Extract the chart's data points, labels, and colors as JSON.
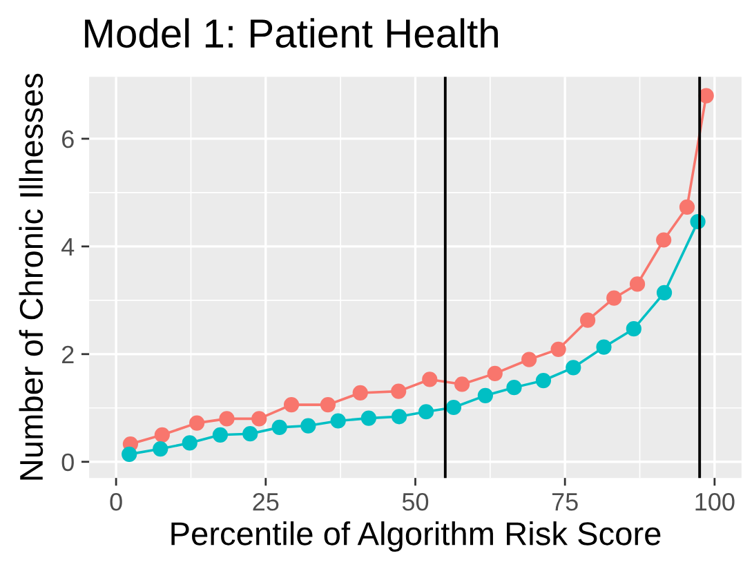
{
  "chart_data": {
    "type": "line",
    "title": "Model 1: Patient Health",
    "xlabel": "Percentile of Algorithm Risk Score",
    "ylabel": "Number of Chronic Illnesses",
    "series": [
      {
        "color": "#f8766d",
        "x": [
          2.4,
          7.7,
          13.5,
          18.5,
          23.9,
          29.3,
          35.4,
          40.8,
          47.2,
          52.4,
          57.8,
          63.3,
          69,
          73.9,
          78.8,
          83.2,
          87.1,
          91.5,
          95.4,
          98.6
        ],
        "values": [
          0.33,
          0.5,
          0.72,
          0.8,
          0.8,
          1.06,
          1.06,
          1.28,
          1.31,
          1.53,
          1.44,
          1.64,
          1.9,
          2.09,
          2.63,
          3.04,
          3.3,
          4.12,
          4.73,
          6.8
        ]
      },
      {
        "color": "#00bfc4",
        "x": [
          2.2,
          7.4,
          12.3,
          17.4,
          22.4,
          27.3,
          32.1,
          37.1,
          42.2,
          47.3,
          51.8,
          56.4,
          61.7,
          66.5,
          71.4,
          76.4,
          81.5,
          86.5,
          91.6,
          97.2
        ],
        "values": [
          0.14,
          0.24,
          0.35,
          0.5,
          0.52,
          0.64,
          0.67,
          0.76,
          0.81,
          0.84,
          0.93,
          1.01,
          1.23,
          1.38,
          1.51,
          1.75,
          2.13,
          2.47,
          3.14,
          4.46
        ]
      }
    ],
    "marker": "circle",
    "line_style": "solid",
    "grid": true,
    "xlim": [
      -4.5,
      104.5
    ],
    "ylim": [
      -0.3,
      7.15
    ],
    "xticks": [
      0,
      25,
      50,
      75,
      100
    ],
    "yticks": [
      0,
      2,
      4,
      6
    ],
    "ref_lines": [
      {
        "axis": "x",
        "value": 55,
        "color": "#000000"
      },
      {
        "axis": "x",
        "value": 97.5,
        "color": "#000000"
      }
    ]
  }
}
